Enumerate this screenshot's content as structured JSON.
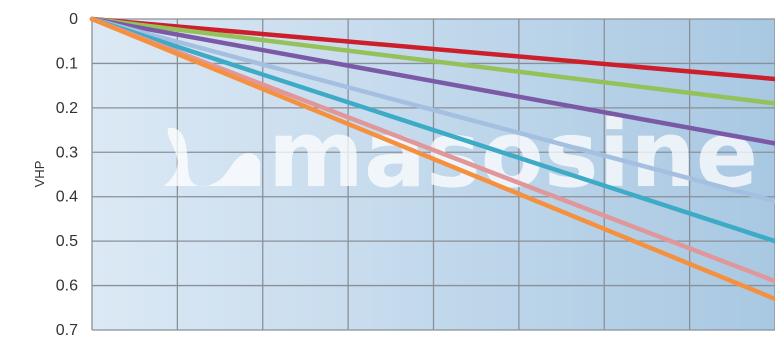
{
  "chart_data": {
    "type": "line",
    "ylabel": "VHP",
    "y_ticks": [
      "0",
      "0.1",
      "0.2",
      "0.3",
      "0.4",
      "0.5",
      "0.6",
      "0.7"
    ],
    "ylim": [
      0,
      0.7
    ],
    "y_inverted": true,
    "x_divisions": 8,
    "grid": true,
    "series": [
      {
        "color": "#cc1f2b",
        "values": [
          0,
          0.135
        ]
      },
      {
        "color": "#95c15a",
        "values": [
          0,
          0.19
        ]
      },
      {
        "color": "#7a5aa6",
        "values": [
          0,
          0.28
        ]
      },
      {
        "color": "#a4bfe0",
        "values": [
          0,
          0.41
        ]
      },
      {
        "color": "#3eabc6",
        "values": [
          0,
          0.5
        ]
      },
      {
        "color": "#e0979a",
        "values": [
          0,
          0.59
        ]
      },
      {
        "color": "#f5913e",
        "values": [
          0,
          0.63
        ]
      }
    ]
  },
  "watermark": {
    "text": "masosine"
  }
}
